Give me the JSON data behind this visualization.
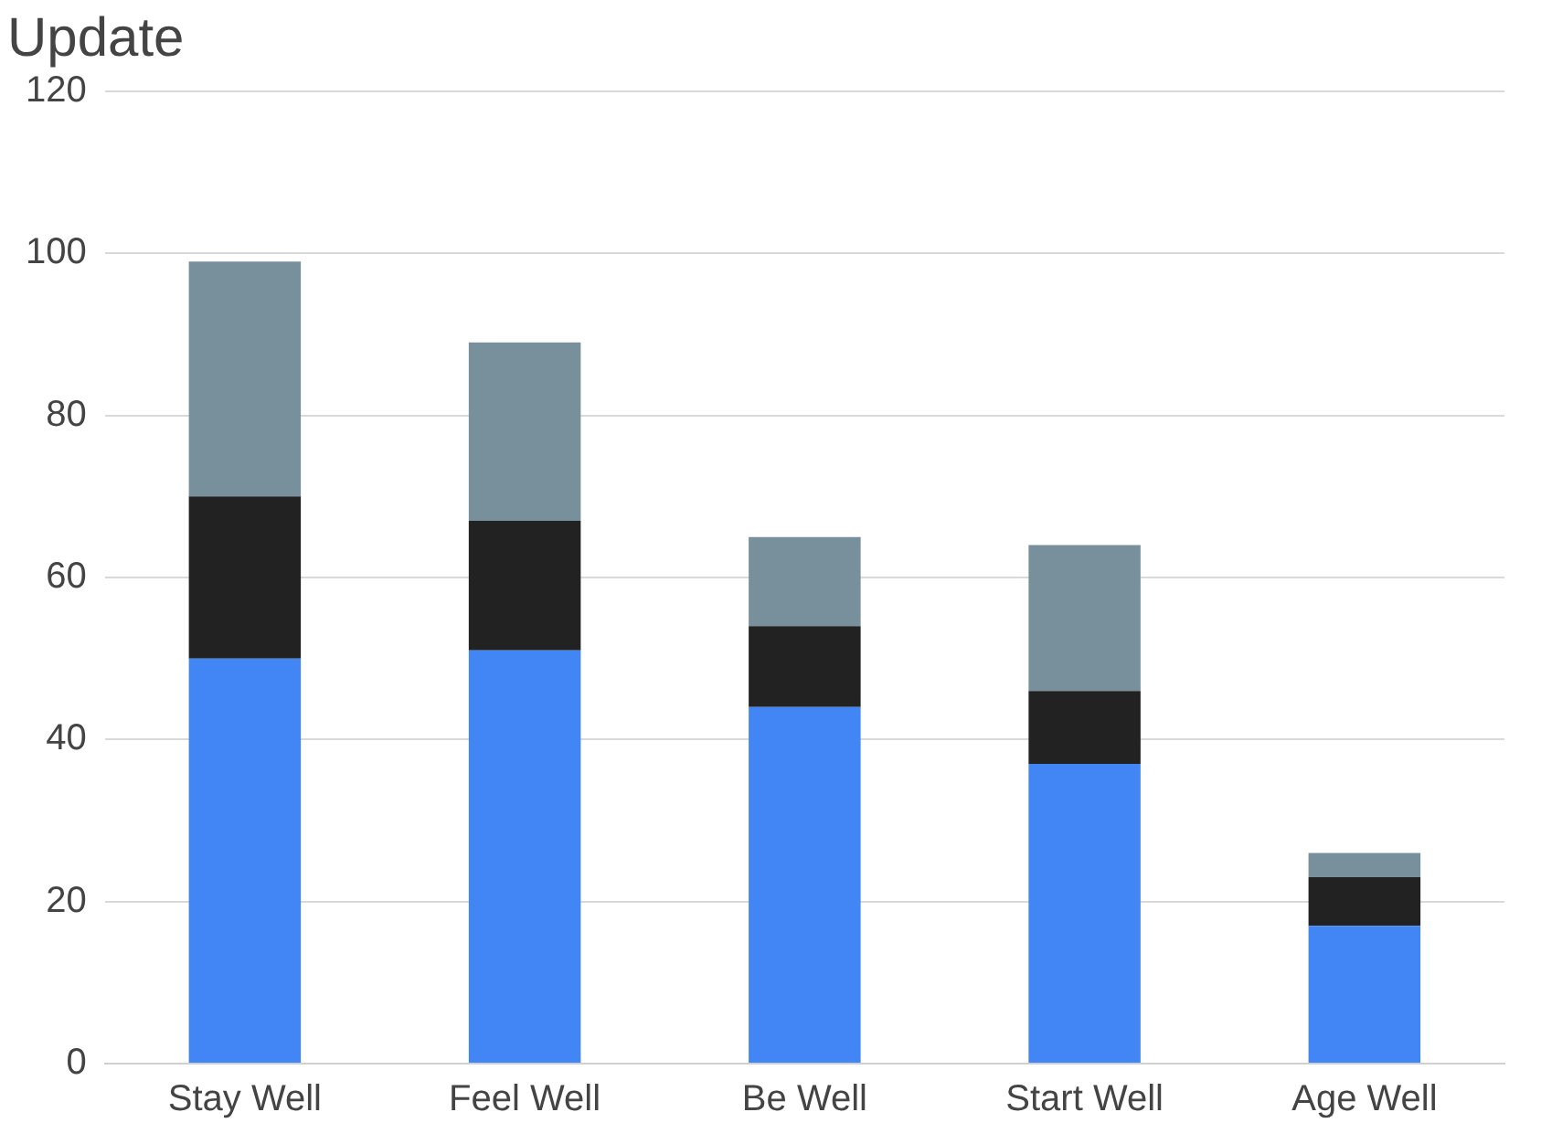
{
  "chart_data": {
    "type": "bar",
    "title": "Update",
    "categories": [
      "Stay Well",
      "Feel Well",
      "Be Well",
      "Start Well",
      "Age Well"
    ],
    "stacked": true,
    "series": [
      {
        "color": "#4285f4",
        "values": [
          50,
          51,
          44,
          37,
          17
        ]
      },
      {
        "color": "#222222",
        "values": [
          20,
          16,
          10,
          9,
          6
        ]
      },
      {
        "color": "#78909c",
        "values": [
          29,
          22,
          11,
          18,
          3
        ]
      }
    ],
    "ylim": [
      0,
      120
    ],
    "yticks": [
      0,
      20,
      40,
      60,
      80,
      100,
      120
    ],
    "grid": "y",
    "legend": false
  }
}
